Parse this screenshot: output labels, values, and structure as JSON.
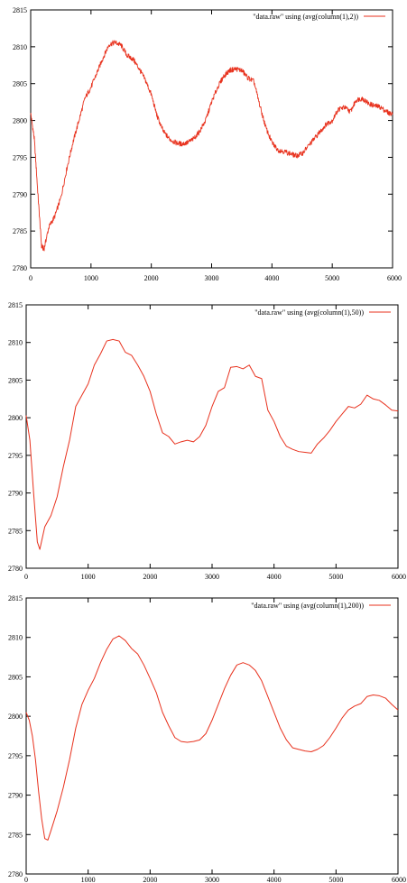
{
  "chart_data": [
    {
      "type": "line",
      "legend_position": "top-right",
      "grid": false,
      "xlim": [
        0,
        6000
      ],
      "ylim": [
        2780,
        2815
      ],
      "x_ticks": [
        0,
        1000,
        2000,
        3000,
        4000,
        5000,
        6000
      ],
      "y_ticks": [
        2780,
        2785,
        2790,
        2795,
        2800,
        2805,
        2810,
        2815
      ],
      "series": [
        {
          "name": "\"data.raw\" using (avg(column(1),2))",
          "color": "#e8321e",
          "noise": 0.35,
          "x": [
            0,
            60,
            120,
            180,
            220,
            300,
            400,
            500,
            600,
            700,
            800,
            900,
            1000,
            1100,
            1200,
            1300,
            1400,
            1500,
            1600,
            1700,
            1800,
            1900,
            2000,
            2100,
            2200,
            2300,
            2400,
            2500,
            2600,
            2700,
            2800,
            2900,
            3000,
            3100,
            3200,
            3300,
            3400,
            3500,
            3600,
            3700,
            3800,
            3900,
            4000,
            4100,
            4200,
            4300,
            4400,
            4500,
            4600,
            4700,
            4800,
            4900,
            5000,
            5100,
            5200,
            5300,
            5400,
            5500,
            5600,
            5700,
            5800,
            5900,
            6000
          ],
          "values": [
            2801.0,
            2797.5,
            2790.0,
            2783.0,
            2782.5,
            2785.5,
            2787.0,
            2789.5,
            2793.5,
            2797.0,
            2800.0,
            2803.0,
            2804.5,
            2806.5,
            2808.5,
            2810.3,
            2810.6,
            2810.2,
            2808.8,
            2808.3,
            2807.0,
            2805.5,
            2803.5,
            2800.5,
            2798.5,
            2797.5,
            2797.0,
            2796.8,
            2797.0,
            2797.5,
            2798.5,
            2800.0,
            2802.5,
            2804.5,
            2806.0,
            2806.8,
            2807.0,
            2806.8,
            2805.8,
            2805.3,
            2802.0,
            2799.0,
            2797.0,
            2796.0,
            2795.8,
            2795.5,
            2795.2,
            2795.5,
            2796.5,
            2797.5,
            2798.5,
            2799.5,
            2800.0,
            2801.5,
            2801.8,
            2801.2,
            2802.8,
            2803.0,
            2802.3,
            2802.0,
            2801.8,
            2801.2,
            2800.8
          ]
        }
      ]
    },
    {
      "type": "line",
      "legend_position": "top-right",
      "grid": false,
      "xlim": [
        0,
        6000
      ],
      "ylim": [
        2780,
        2815
      ],
      "x_ticks": [
        0,
        1000,
        2000,
        3000,
        4000,
        5000,
        6000
      ],
      "y_ticks": [
        2780,
        2785,
        2790,
        2795,
        2800,
        2805,
        2810,
        2815
      ],
      "series": [
        {
          "name": "\"data.raw\" using (avg(column(1),50))",
          "color": "#e8321e",
          "noise": 0,
          "x": [
            0,
            60,
            120,
            180,
            220,
            300,
            400,
            500,
            600,
            700,
            800,
            900,
            1000,
            1100,
            1200,
            1300,
            1400,
            1500,
            1600,
            1700,
            1800,
            1900,
            2000,
            2100,
            2200,
            2300,
            2400,
            2500,
            2600,
            2700,
            2800,
            2900,
            3000,
            3100,
            3200,
            3300,
            3400,
            3500,
            3600,
            3700,
            3800,
            3900,
            4000,
            4100,
            4200,
            4300,
            4400,
            4500,
            4600,
            4700,
            4800,
            4900,
            5000,
            5100,
            5200,
            5300,
            5400,
            5500,
            5600,
            5700,
            5800,
            5900,
            6000
          ],
          "values": [
            2800.3,
            2797.0,
            2790.0,
            2783.5,
            2782.5,
            2785.5,
            2787.0,
            2789.5,
            2793.5,
            2797.0,
            2801.5,
            2803.0,
            2804.5,
            2807.0,
            2808.5,
            2810.2,
            2810.4,
            2810.2,
            2808.7,
            2808.3,
            2807.0,
            2805.5,
            2803.5,
            2800.5,
            2798.0,
            2797.5,
            2796.5,
            2796.8,
            2797.0,
            2796.8,
            2797.5,
            2799.0,
            2801.5,
            2803.5,
            2804.0,
            2806.7,
            2806.8,
            2806.5,
            2807.0,
            2805.5,
            2805.2,
            2801.0,
            2799.5,
            2797.5,
            2796.2,
            2795.8,
            2795.5,
            2795.4,
            2795.3,
            2796.5,
            2797.3,
            2798.3,
            2799.5,
            2800.5,
            2801.5,
            2801.3,
            2801.8,
            2803.0,
            2802.5,
            2802.3,
            2801.7,
            2801.0,
            2800.9
          ]
        }
      ]
    },
    {
      "type": "line",
      "legend_position": "top-right",
      "grid": false,
      "xlim": [
        0,
        6000
      ],
      "ylim": [
        2780,
        2815
      ],
      "x_ticks": [
        0,
        1000,
        2000,
        3000,
        4000,
        5000,
        6000
      ],
      "y_ticks": [
        2780,
        2785,
        2790,
        2795,
        2800,
        2805,
        2810,
        2815
      ],
      "series": [
        {
          "name": "\"data.raw\" using (avg(column(1),200))",
          "color": "#e8321e",
          "noise": 0,
          "x": [
            0,
            50,
            100,
            150,
            200,
            250,
            300,
            350,
            400,
            500,
            600,
            700,
            800,
            900,
            1000,
            1100,
            1200,
            1300,
            1400,
            1500,
            1600,
            1700,
            1800,
            1900,
            2000,
            2100,
            2200,
            2300,
            2400,
            2500,
            2600,
            2700,
            2800,
            2900,
            3000,
            3100,
            3200,
            3300,
            3400,
            3500,
            3600,
            3700,
            3800,
            3900,
            4000,
            4100,
            4200,
            4300,
            4400,
            4500,
            4600,
            4700,
            4800,
            4900,
            5000,
            5100,
            5200,
            5300,
            5400,
            5500,
            5600,
            5700,
            5800,
            5900,
            6000
          ],
          "values": [
            2800.5,
            2799.5,
            2797.5,
            2794.5,
            2790.5,
            2787.0,
            2784.5,
            2784.3,
            2785.5,
            2788.0,
            2791.0,
            2794.5,
            2798.5,
            2801.5,
            2803.3,
            2804.8,
            2806.8,
            2808.5,
            2809.8,
            2810.2,
            2809.6,
            2808.6,
            2807.9,
            2806.5,
            2804.8,
            2803.0,
            2800.5,
            2798.8,
            2797.3,
            2796.8,
            2796.7,
            2796.8,
            2797.0,
            2797.8,
            2799.5,
            2801.5,
            2803.5,
            2805.2,
            2806.5,
            2806.8,
            2806.5,
            2805.8,
            2804.5,
            2802.5,
            2800.5,
            2798.5,
            2797.0,
            2796.0,
            2795.8,
            2795.6,
            2795.5,
            2795.8,
            2796.3,
            2797.3,
            2798.5,
            2799.8,
            2800.8,
            2801.3,
            2801.6,
            2802.5,
            2802.7,
            2802.6,
            2802.3,
            2801.5,
            2800.8
          ]
        }
      ]
    }
  ]
}
